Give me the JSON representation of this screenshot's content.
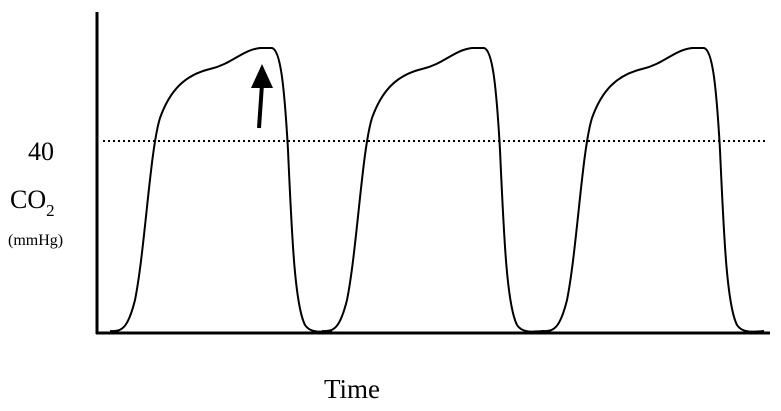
{
  "reference_label": "40",
  "y_label": {
    "main": "CO",
    "subscript": "2",
    "unit": "(mmHg)"
  },
  "x_label": "Time"
}
